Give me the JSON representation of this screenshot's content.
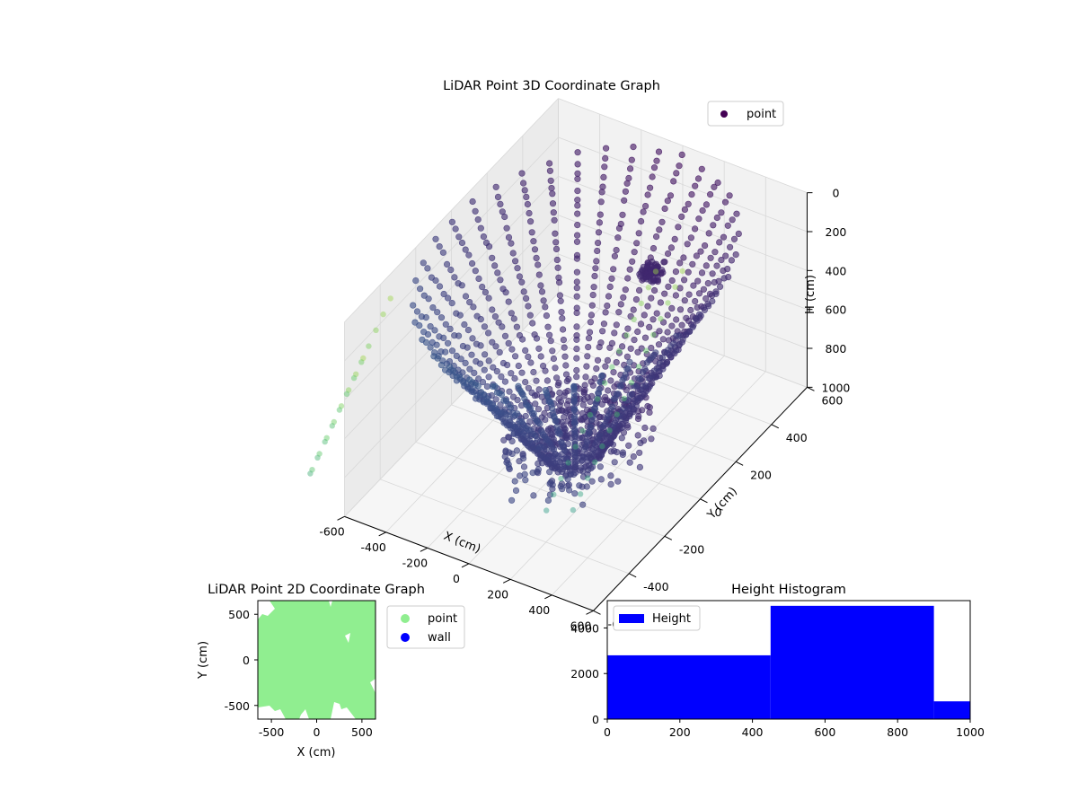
{
  "chart_data": [
    {
      "type": "scatter",
      "projection": "3d",
      "title": "LiDAR Point 3D Coordinate Graph",
      "xlabel": "X (cm)",
      "ylabel": "Y (cm)",
      "zlabel": "H (cm)",
      "xlim": [
        -600,
        600
      ],
      "ylim": [
        -600,
        600
      ],
      "zlim": [
        0,
        1000
      ],
      "z_inverted": true,
      "x_ticks": [
        "-600",
        "-400",
        "-200",
        "0",
        "200",
        "400",
        "600"
      ],
      "y_ticks": [
        "-600",
        "-400",
        "-200",
        "0",
        "200",
        "400",
        "600"
      ],
      "z_ticks": [
        "0",
        "200",
        "400",
        "600",
        "800",
        "1000"
      ],
      "grid": true,
      "legend": {
        "placement": "top-right",
        "entries": [
          {
            "name": "point",
            "color": "#440154"
          }
        ]
      },
      "colormap": "viridis",
      "series": [
        {
          "name": "point",
          "description_of_shape": "radial scan lines rising as a bowl from center (h≈1000) toward rim (h≈0)",
          "scan_angles_deg": [
            0,
            10,
            20,
            30,
            40,
            50,
            60,
            70,
            80,
            90,
            100,
            110,
            120,
            130,
            140,
            150,
            160,
            170,
            180,
            190,
            200,
            210,
            220,
            230,
            240,
            250,
            260,
            270,
            280,
            290,
            300,
            310,
            320,
            330,
            340,
            350
          ],
          "radius_range": [
            100,
            600
          ],
          "height_range": [
            50,
            1000
          ],
          "cluster": {
            "x": 150,
            "y": 250,
            "h": 250
          }
        }
      ]
    },
    {
      "type": "scatter",
      "title": "LiDAR Point 2D Coordinate Graph",
      "xlabel": "X (cm)",
      "ylabel": "Y (cm)",
      "xlim": [
        -650,
        650
      ],
      "ylim": [
        -650,
        650
      ],
      "x_ticks": [
        "-500",
        "0",
        "500"
      ],
      "y_ticks": [
        "-500",
        "0",
        "500"
      ],
      "legend": {
        "placement": "outside-right",
        "entries": [
          {
            "name": "point",
            "color": "#90ee90"
          },
          {
            "name": "wall",
            "color": "#0000ff"
          }
        ]
      },
      "series": [
        {
          "name": "point",
          "color": "#90ee90",
          "extent": {
            "x": [
              -650,
              650
            ],
            "y": [
              -650,
              650
            ]
          }
        },
        {
          "name": "wall",
          "color": "#0000ff",
          "points": []
        }
      ]
    },
    {
      "type": "bar",
      "title": "Height Histogram",
      "xlim": [
        0,
        1000
      ],
      "ylim": [
        0,
        5200
      ],
      "x_ticks": [
        "0",
        "200",
        "400",
        "600",
        "800",
        "1000"
      ],
      "y_ticks": [
        "0",
        "2000",
        "4000"
      ],
      "legend": {
        "placement": "top-left",
        "entries": [
          {
            "name": "Height",
            "color": "#0000ff"
          }
        ]
      },
      "series": [
        {
          "name": "Height",
          "color": "#0000ff",
          "bins": [
            {
              "from": 0,
              "to": 450,
              "count": 2800
            },
            {
              "from": 450,
              "to": 900,
              "count": 4970
            },
            {
              "from": 900,
              "to": 1000,
              "count": 780
            }
          ]
        }
      ]
    }
  ]
}
